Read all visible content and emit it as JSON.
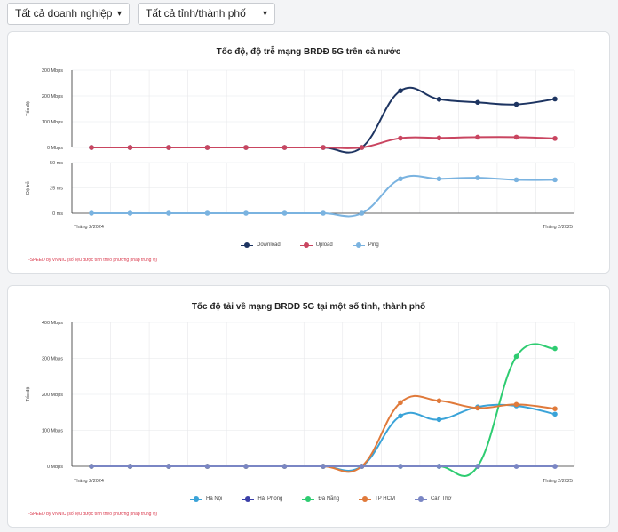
{
  "filters": {
    "enterprise": "Tất cả doanh nghiệp",
    "province": "Tất cả tỉnh/thành phố"
  },
  "card1": {
    "title": "Tốc độ, độ trễ mạng BRDĐ 5G trên cả nước",
    "note": "i-SPEED by VNNIC (số liệu được tính theo phương pháp trung vị)"
  },
  "card2": {
    "title": "Tốc độ tải về mạng BRDĐ 5G tại một số tỉnh, thành phố",
    "note": "i-SPEED by VNNIC (số liệu được tính theo phương pháp trung vị)"
  },
  "chart_data": [
    {
      "type": "line",
      "title": "Tốc độ, độ trễ mạng BRDĐ 5G trên cả nước",
      "x_first_label": "Tháng 2/2024",
      "x_last_label": "Tháng 2/2025",
      "x_count": 13,
      "panels": [
        {
          "ylabel": "Tốc độ",
          "ylim": [
            0,
            300
          ],
          "ticks": [
            0,
            100,
            200,
            300
          ],
          "tick_labels": [
            "0 Mbps",
            "100 Mbps",
            "200 Mbps",
            "300 Mbps"
          ],
          "series": [
            {
              "name": "Download",
              "color": "#1d3461",
              "values": [
                0,
                0,
                0,
                0,
                0,
                0,
                0,
                0,
                220,
                187,
                175,
                167,
                188
              ]
            },
            {
              "name": "Upload",
              "color": "#c94560",
              "values": [
                0,
                0,
                0,
                0,
                0,
                0,
                0,
                0,
                36,
                37,
                40,
                40,
                35
              ]
            }
          ]
        },
        {
          "ylabel": "Độ trễ",
          "ylim": [
            0,
            50
          ],
          "ticks": [
            0,
            25,
            50
          ],
          "tick_labels": [
            "0 ms",
            "25 ms",
            "50 ms"
          ],
          "series": [
            {
              "name": "Ping",
              "color": "#7ab3e0",
              "values": [
                0,
                0,
                0,
                0,
                0,
                0,
                0,
                0,
                34,
                34,
                35,
                33,
                33
              ]
            }
          ]
        }
      ],
      "grid": true,
      "legend": "bottom-center"
    },
    {
      "type": "line",
      "title": "Tốc độ tải về mạng BRDĐ 5G tại một số tỉnh, thành phố",
      "x_first_label": "Tháng 2/2024",
      "x_last_label": "Tháng 2/2025",
      "x_count": 13,
      "ylabel": "Tốc độ",
      "ylim": [
        0,
        400
      ],
      "ticks": [
        0,
        100,
        200,
        300,
        400
      ],
      "tick_labels": [
        "0 Mbps",
        "100 Mbps",
        "200 Mbps",
        "300 Mbps",
        "400 Mbps"
      ],
      "series": [
        {
          "name": "Hà Nội",
          "color": "#3aa3d8",
          "values": [
            0,
            0,
            0,
            0,
            0,
            0,
            0,
            0,
            140,
            130,
            165,
            168,
            145
          ]
        },
        {
          "name": "Hải Phòng",
          "color": "#3b3fa8",
          "values": [
            0,
            0,
            0,
            0,
            0,
            0,
            0,
            0,
            0,
            0,
            0,
            0,
            0
          ]
        },
        {
          "name": "Đà Nẵng",
          "color": "#2ecc71",
          "values": [
            0,
            0,
            0,
            0,
            0,
            0,
            0,
            0,
            0,
            0,
            0,
            305,
            327
          ]
        },
        {
          "name": "TP HCM",
          "color": "#e07a3b",
          "values": [
            0,
            0,
            0,
            0,
            0,
            0,
            0,
            0,
            177,
            182,
            162,
            172,
            160
          ]
        },
        {
          "name": "Cần Thơ",
          "color": "#7a86c4",
          "values": [
            0,
            0,
            0,
            0,
            0,
            0,
            0,
            0,
            0,
            0,
            0,
            0,
            0
          ]
        }
      ],
      "grid": true,
      "legend": "bottom-center"
    }
  ]
}
